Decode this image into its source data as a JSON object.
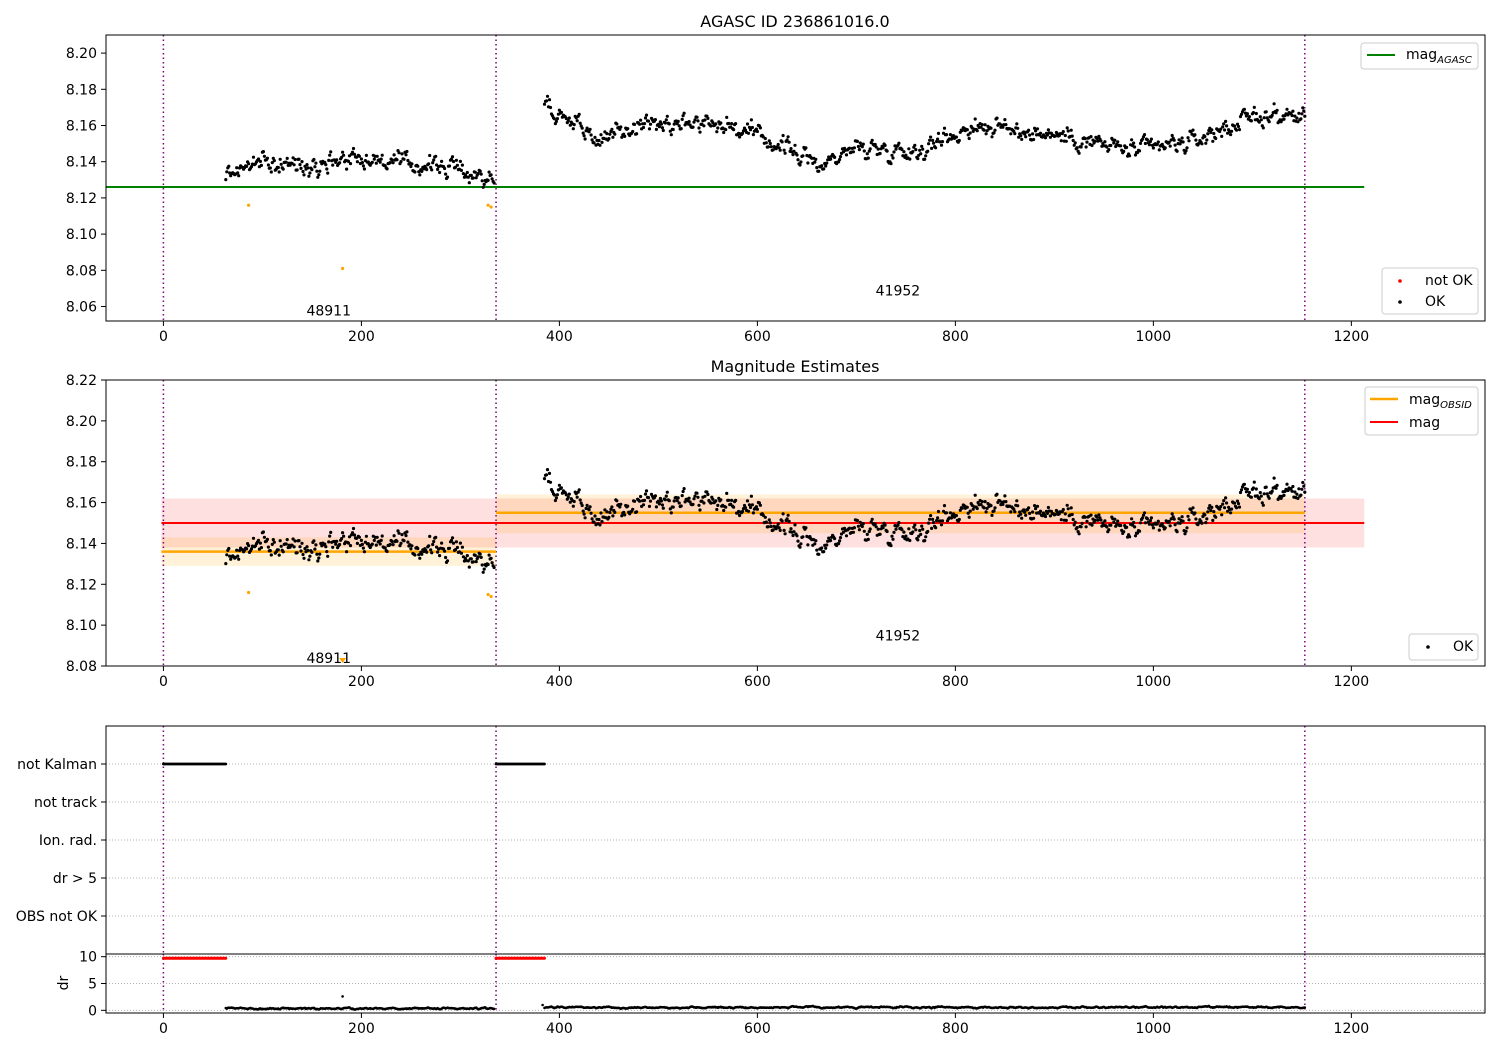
{
  "colors": {
    "ok": "#000000",
    "not_ok": "#ff0000",
    "agasc": "#008000",
    "obsid": "#ffa500",
    "mag": "#ff0000",
    "obs_divider": "#800080",
    "grid": "#b0b0b0"
  },
  "chart_data": [
    {
      "type": "scatter",
      "title": "AGASC ID 236861016.0",
      "xlim": [
        -58,
        1335
      ],
      "ylim": [
        8.052,
        8.21
      ],
      "xticks": [
        0,
        200,
        400,
        600,
        800,
        1000,
        1200
      ],
      "yticks": [
        8.06,
        8.08,
        8.1,
        8.12,
        8.14,
        8.16,
        8.18,
        8.2
      ],
      "ytick_labels": [
        "8.06",
        "8.08",
        "8.10",
        "8.12",
        "8.14",
        "8.16",
        "8.18",
        "8.20"
      ],
      "obs_dividers": [
        0,
        336,
        1153
      ],
      "obs_labels": [
        {
          "text": "48911",
          "x": 167,
          "y": 8.055
        },
        {
          "text": "41952",
          "x": 742,
          "y": 8.066
        }
      ],
      "mag_agasc": {
        "value": 8.126,
        "x_range": [
          -58,
          1213
        ]
      },
      "series": [
        {
          "name": "OK",
          "color": "#000000",
          "segments": [
            {
              "x_range": [
                63,
                334
              ],
              "mean": 8.137,
              "spread": 0.011,
              "levels": [
                [
                  63,
                  8.133
                ],
                [
                  90,
                  8.139
                ],
                [
                  140,
                  8.138
                ],
                [
                  190,
                  8.143
                ],
                [
                  240,
                  8.139
                ],
                [
                  290,
                  8.137
                ],
                [
                  334,
                  8.13
                ]
              ]
            },
            {
              "x_range": [
                385,
                1153
              ],
              "mean": 8.155,
              "spread": 0.012,
              "levels": [
                [
                  385,
                  8.172
                ],
                [
                  440,
                  8.152
                ],
                [
                  500,
                  8.163
                ],
                [
                  560,
                  8.162
                ],
                [
                  630,
                  8.148
                ],
                [
                  660,
                  8.138
                ],
                [
                  700,
                  8.148
                ],
                [
                  760,
                  8.146
                ],
                [
                  820,
                  8.16
                ],
                [
                  900,
                  8.155
                ],
                [
                  980,
                  8.146
                ],
                [
                  1040,
                  8.151
                ],
                [
                  1100,
                  8.165
                ],
                [
                  1153,
                  8.165
                ]
              ]
            }
          ]
        },
        {
          "name": "not OK",
          "color": "#ff0000",
          "points": []
        },
        {
          "name": "",
          "color": "#ffa500",
          "points": [
            [
              86,
              8.116
            ],
            [
              181,
              8.081
            ],
            [
              328,
              8.116
            ],
            [
              331,
              8.115
            ]
          ]
        }
      ],
      "legend": [
        {
          "label": "mag",
          "subscript": "AGASC",
          "kind": "line",
          "color": "#008000"
        },
        {
          "label": "not OK",
          "kind": "dot",
          "color": "#ff0000"
        },
        {
          "label": "OK",
          "kind": "dot",
          "color": "#000000"
        }
      ]
    },
    {
      "type": "scatter",
      "title": "Magnitude Estimates",
      "xlim": [
        -58,
        1335
      ],
      "ylim": [
        8.08,
        8.22
      ],
      "xticks": [
        0,
        200,
        400,
        600,
        800,
        1000,
        1200
      ],
      "yticks": [
        8.08,
        8.1,
        8.12,
        8.14,
        8.16,
        8.18,
        8.2,
        8.22
      ],
      "ytick_labels": [
        "8.08",
        "8.10",
        "8.12",
        "8.14",
        "8.16",
        "8.18",
        "8.20",
        "8.22"
      ],
      "obs_dividers": [
        0,
        336,
        1153
      ],
      "obs_labels": [
        {
          "text": "48911",
          "x": 167,
          "y": 8.084
        },
        {
          "text": "41952",
          "x": 742,
          "y": 8.095
        }
      ],
      "mag": {
        "value": 8.15,
        "band": [
          8.138,
          8.162
        ],
        "x_range": [
          -2,
          1213
        ]
      },
      "mag_obsid": [
        {
          "x_range": [
            -2,
            336
          ],
          "value": 8.136,
          "band": [
            8.129,
            8.143
          ]
        },
        {
          "x_range": [
            336,
            1153
          ],
          "value": 8.155,
          "band": [
            8.145,
            8.164
          ]
        }
      ],
      "orange_marks": [
        [
          86,
          8.116
        ],
        [
          328,
          8.115
        ],
        [
          331,
          8.114
        ]
      ],
      "orange_triangle": [
        181,
        8.081
      ],
      "legend": [
        {
          "label": "mag",
          "subscript": "OBSID",
          "kind": "line",
          "color": "#ffa500"
        },
        {
          "label": "mag",
          "kind": "line",
          "color": "#ff0000"
        },
        {
          "label": "OK",
          "kind": "dot",
          "color": "#000000"
        }
      ]
    },
    {
      "type": "scatter",
      "title": "",
      "xlim": [
        -58,
        1335
      ],
      "categories": [
        "not Kalman",
        "not track",
        "Ion. rad.",
        "dr > 5",
        "OBS not OK"
      ],
      "flag_segments": [
        {
          "category": "not Kalman",
          "x_range": [
            0,
            63
          ],
          "color": "#000000"
        },
        {
          "category": "not Kalman",
          "x_range": [
            336,
            385
          ],
          "color": "#000000"
        }
      ]
    },
    {
      "type": "scatter",
      "title": "",
      "xlim": [
        -58,
        1335
      ],
      "ylim": [
        -0.5,
        10.5
      ],
      "xticks": [
        0,
        200,
        400,
        600,
        800,
        1000,
        1200
      ],
      "yticks": [
        0,
        5,
        10
      ],
      "ylabel": "dr",
      "red_segments": [
        {
          "x_range": [
            0,
            63
          ],
          "value": 9.7
        },
        {
          "x_range": [
            336,
            385
          ],
          "value": 9.7
        }
      ],
      "black_segments": [
        {
          "x_range": [
            63,
            334
          ],
          "value": 0.35
        },
        {
          "x_range": [
            385,
            1153
          ],
          "value": 0.55
        }
      ],
      "outliers": [
        [
          181,
          2.6
        ],
        [
          383,
          1.0
        ]
      ]
    }
  ]
}
